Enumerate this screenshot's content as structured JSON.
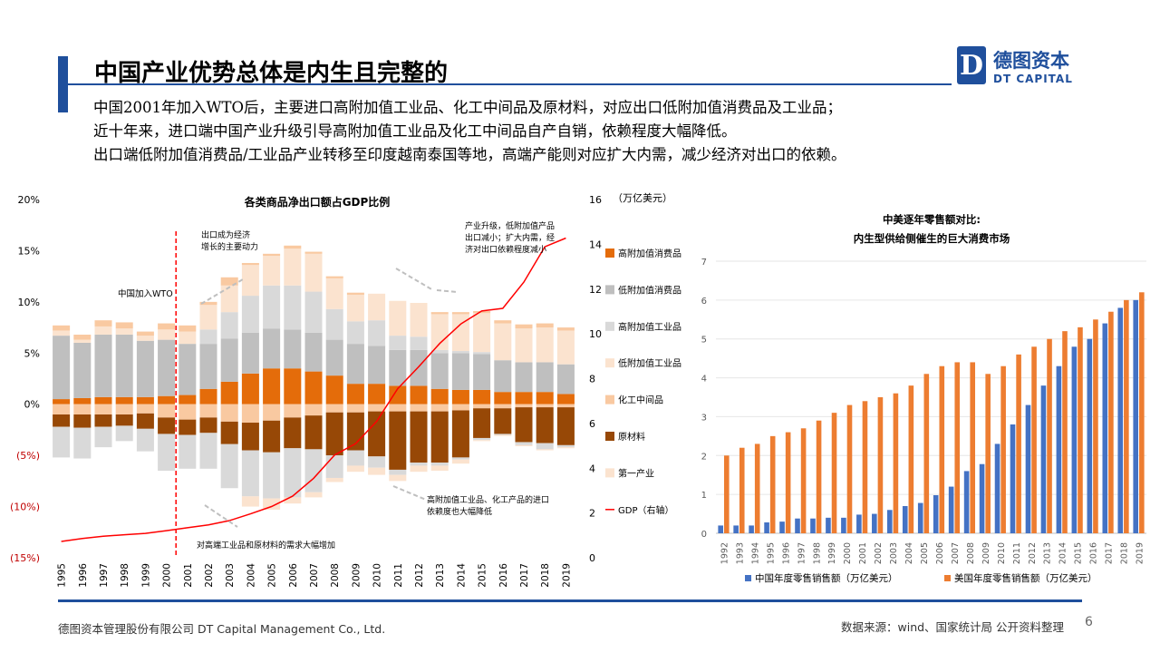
{
  "slide": {
    "title": "中国产业优势总体是内生且完整的",
    "logo": {
      "cn": "德图资本",
      "en": "DT CAPITAL",
      "mark": "D"
    },
    "body_lines": [
      "中国2001年加入WTO后，主要进口高附加值工业品、化工中间品及原材料，对应出口低附加值消费品及工业品；",
      "近十年来，进口端中国产业升级引导高附加值工业品及化工中间品自产自销，依赖程度大幅降低。",
      "出口端低附加值消费品/工业品产业转移至印度越南泰国等地，高端产能则对应扩大内需，减少经济对出口的依赖。"
    ],
    "footer_left": "德图资本管理股份有限公司  DT Capital Management  Co., Ltd.",
    "footer_right": "数据来源：wind、国家统计局  公开资料整理",
    "page_number": "6",
    "colors": {
      "brand": "#1f4f9c"
    }
  },
  "chart_data": [
    {
      "type": "bar",
      "title": "各类商品净出口额占GDP比例",
      "right_axis_unit": "（万亿美元）",
      "categories": [
        "1995",
        "1996",
        "1997",
        "1998",
        "1999",
        "2000",
        "2001",
        "2002",
        "2003",
        "2004",
        "2005",
        "2006",
        "2007",
        "2008",
        "2009",
        "2010",
        "2011",
        "2012",
        "2013",
        "2014",
        "2015",
        "2016",
        "2017",
        "2018",
        "2019"
      ],
      "ylim": [
        -15,
        20
      ],
      "y_ticks": [
        "20%",
        "15%",
        "10%",
        "5%",
        "0%",
        "(5%)",
        "(10%)",
        "(15%)"
      ],
      "y_tick_values": [
        20,
        15,
        10,
        5,
        0,
        -5,
        -10,
        -15
      ],
      "y2lim": [
        0,
        16
      ],
      "y2_ticks": [
        "16",
        "14",
        "12",
        "10",
        "8",
        "6",
        "4",
        "2",
        "0"
      ],
      "y2_tick_values": [
        16,
        14,
        12,
        10,
        8,
        6,
        4,
        2,
        0
      ],
      "stacked": true,
      "series": [
        {
          "name": "高附加值消费品",
          "color": "#e46c0a",
          "values": [
            0.5,
            0.6,
            0.7,
            0.7,
            0.7,
            0.8,
            0.9,
            1.5,
            2.2,
            3.0,
            3.5,
            3.5,
            3.2,
            2.8,
            2.0,
            2.0,
            1.8,
            1.8,
            1.5,
            1.4,
            1.4,
            1.2,
            1.2,
            1.2,
            1.0
          ]
        },
        {
          "name": "低附加值消费品",
          "color": "#bfbfbf",
          "values": [
            6.2,
            5.4,
            6.1,
            6.1,
            5.5,
            5.5,
            5.0,
            4.4,
            4.2,
            4.0,
            3.9,
            3.8,
            3.8,
            3.5,
            3.9,
            3.7,
            3.5,
            3.5,
            3.5,
            3.6,
            3.5,
            3.1,
            2.9,
            2.9,
            2.9
          ]
        },
        {
          "name": "高附加值工业品",
          "color": "#d9d9d9",
          "values": [
            0.0,
            0.0,
            0.0,
            0.0,
            0.0,
            0.0,
            0.0,
            1.4,
            2.6,
            3.6,
            4.2,
            4.3,
            4.0,
            3.0,
            2.2,
            2.5,
            1.4,
            1.3,
            0.3,
            0.2,
            0.2,
            0.0,
            0.0,
            0.0,
            0.0
          ]
        },
        {
          "name": "低附加值工业品",
          "color": "#fbe3cf",
          "values": [
            0.5,
            0.3,
            0.8,
            0.6,
            0.5,
            1.0,
            1.2,
            2.4,
            2.6,
            3.0,
            2.9,
            3.6,
            3.7,
            3.0,
            2.6,
            2.6,
            3.4,
            3.3,
            3.5,
            3.6,
            3.8,
            3.6,
            3.3,
            3.4,
            3.3
          ]
        },
        {
          "name": "化工中间品",
          "color": "#f9c9a1",
          "values": [
            0.5,
            0.5,
            0.6,
            0.6,
            0.4,
            0.6,
            0.6,
            0.3,
            0.8,
            0.2,
            0.2,
            0.3,
            0.2,
            0.2,
            0.2,
            0.0,
            0.0,
            0.0,
            0.2,
            0.2,
            0.2,
            0.3,
            0.4,
            0.4,
            0.3
          ]
        },
        {
          "name": "化工中间品",
          "color": "#f9c9a1",
          "values": [
            -1.0,
            -1.0,
            -1.0,
            -1.0,
            -0.9,
            -1.3,
            -1.5,
            -1.3,
            -1.7,
            -1.8,
            -1.6,
            -1.3,
            -1.1,
            -0.8,
            -0.8,
            -0.7,
            -0.7,
            -0.7,
            -0.7,
            -0.6,
            -0.4,
            -0.4,
            -0.3,
            -0.3,
            -0.3
          ]
        },
        {
          "name": "原材料",
          "color": "#974806",
          "values": [
            -1.2,
            -1.3,
            -1.2,
            -1.1,
            -1.5,
            -1.6,
            -1.5,
            -1.5,
            -2.2,
            -2.7,
            -3.1,
            -3.0,
            -3.3,
            -4.2,
            -3.7,
            -4.4,
            -5.7,
            -5.0,
            -5.0,
            -4.6,
            -2.9,
            -2.5,
            -3.4,
            -3.5,
            -3.7
          ]
        },
        {
          "name": "高附加值工业品",
          "color": "#d9d9d9",
          "values": [
            -3.0,
            -3.0,
            -2.0,
            -1.5,
            -2.2,
            -3.6,
            -3.3,
            -3.5,
            -4.3,
            -4.5,
            -4.5,
            -4.8,
            -4.2,
            -2.2,
            -1.5,
            -1.1,
            -0.5,
            -0.3,
            -0.3,
            -0.2,
            -0.2,
            -0.1,
            -0.3,
            -0.6,
            -0.2
          ]
        },
        {
          "name": "第一产业",
          "color": "#fbe3cf",
          "values": [
            0,
            0,
            0,
            0,
            0,
            0,
            0,
            0,
            0,
            -1.0,
            -1.1,
            -0.6,
            -0.5,
            -0.4,
            -0.6,
            -0.7,
            -0.6,
            -0.6,
            -0.5,
            -0.4,
            -0.1,
            -0.1,
            -0.1,
            -0.1,
            -0.1
          ]
        }
      ],
      "legend": [
        {
          "name": "高附加值消费品",
          "color": "#e46c0a"
        },
        {
          "name": "低附加值消费品",
          "color": "#bfbfbf"
        },
        {
          "name": "高附加值工业品",
          "color": "#d9d9d9"
        },
        {
          "name": "低附加值工业品",
          "color": "#fbe3cf"
        },
        {
          "name": "化工中间品",
          "color": "#f9c9a1"
        },
        {
          "name": "原材料",
          "color": "#974806"
        },
        {
          "name": "第一产业",
          "color": "#fbe3cf"
        },
        {
          "name": "GDP（右轴）",
          "color": "#ff0000",
          "line": true
        }
      ],
      "legend_position": "right",
      "line_series": {
        "name": "GDP（右轴）",
        "color": "#ff0000",
        "axis": "right",
        "values": [
          0.73,
          0.86,
          0.96,
          1.03,
          1.09,
          1.21,
          1.34,
          1.47,
          1.66,
          1.96,
          2.29,
          2.75,
          3.55,
          4.59,
          5.1,
          6.09,
          7.55,
          8.53,
          9.57,
          10.44,
          11.02,
          11.14,
          12.31,
          13.89,
          14.28
        ]
      },
      "annotations": [
        "出口成为经济增长的主要动力",
        "中国加入WTO",
        "产业升级，低附加值产品出口减小；扩大内需，经济对出口依赖程度减小",
        "高附加值工业品、化工产品的进口依赖度也大幅降低",
        "对高端工业品和原材料的需求大幅增加"
      ],
      "wto_marker_year": "2001",
      "grid": false
    },
    {
      "type": "bar",
      "title": "中美逐年零售额对比:",
      "subtitle": "内生型供给侧催生的巨大消费市场",
      "categories": [
        "1992",
        "1993",
        "1994",
        "1995",
        "1996",
        "1997",
        "1998",
        "1999",
        "2000",
        "2001",
        "2002",
        "2003",
        "2004",
        "2005",
        "2006",
        "2007",
        "2008",
        "2009",
        "2010",
        "2011",
        "2012",
        "2013",
        "2014",
        "2015",
        "2016",
        "2017",
        "2018",
        "2019"
      ],
      "ylim": [
        0,
        7
      ],
      "y_ticks": [
        "7",
        "6",
        "5",
        "4",
        "3",
        "2",
        "1",
        "0"
      ],
      "y_tick_values": [
        7,
        6,
        5,
        4,
        3,
        2,
        1,
        0
      ],
      "grid": true,
      "series": [
        {
          "name": "中国年度零售销售额（万亿美元）",
          "color": "#4472c4",
          "values": [
            0.2,
            0.2,
            0.2,
            0.28,
            0.3,
            0.38,
            0.38,
            0.4,
            0.4,
            0.48,
            0.5,
            0.6,
            0.7,
            0.78,
            0.98,
            1.2,
            1.6,
            1.78,
            2.3,
            2.8,
            3.3,
            3.8,
            4.3,
            4.8,
            5.0,
            5.4,
            5.8,
            6.0
          ]
        },
        {
          "name": "美国年度零售销售额（万亿美元）",
          "color": "#ed7d31",
          "values": [
            2.0,
            2.2,
            2.3,
            2.5,
            2.6,
            2.7,
            2.9,
            3.1,
            3.3,
            3.4,
            3.5,
            3.6,
            3.8,
            4.1,
            4.3,
            4.4,
            4.4,
            4.1,
            4.3,
            4.6,
            4.8,
            5.0,
            5.2,
            5.3,
            5.5,
            5.7,
            6.0,
            6.2
          ]
        }
      ],
      "legend_position": "bottom"
    }
  ]
}
